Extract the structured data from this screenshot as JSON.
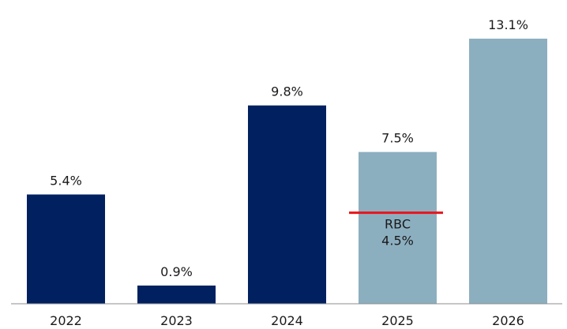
{
  "chart_data": {
    "type": "bar",
    "categories": [
      "2022",
      "2023",
      "2024",
      "2025",
      "2026"
    ],
    "values": [
      5.4,
      0.9,
      9.8,
      7.5,
      13.1
    ],
    "value_labels": [
      "5.4%",
      "0.9%",
      "9.8%",
      "7.5%",
      "13.1%"
    ],
    "bar_colors": [
      "#002060",
      "#002060",
      "#002060",
      "#8CAFC0",
      "#8CAFC0"
    ],
    "title": "",
    "xlabel": "",
    "ylabel": "",
    "ylim": [
      0,
      13.1
    ],
    "grid": false,
    "annotation": {
      "category": "2025",
      "value": 4.5,
      "line_color": "#E8141B",
      "label_line1": "RBC",
      "label_line2": "4.5%"
    }
  }
}
